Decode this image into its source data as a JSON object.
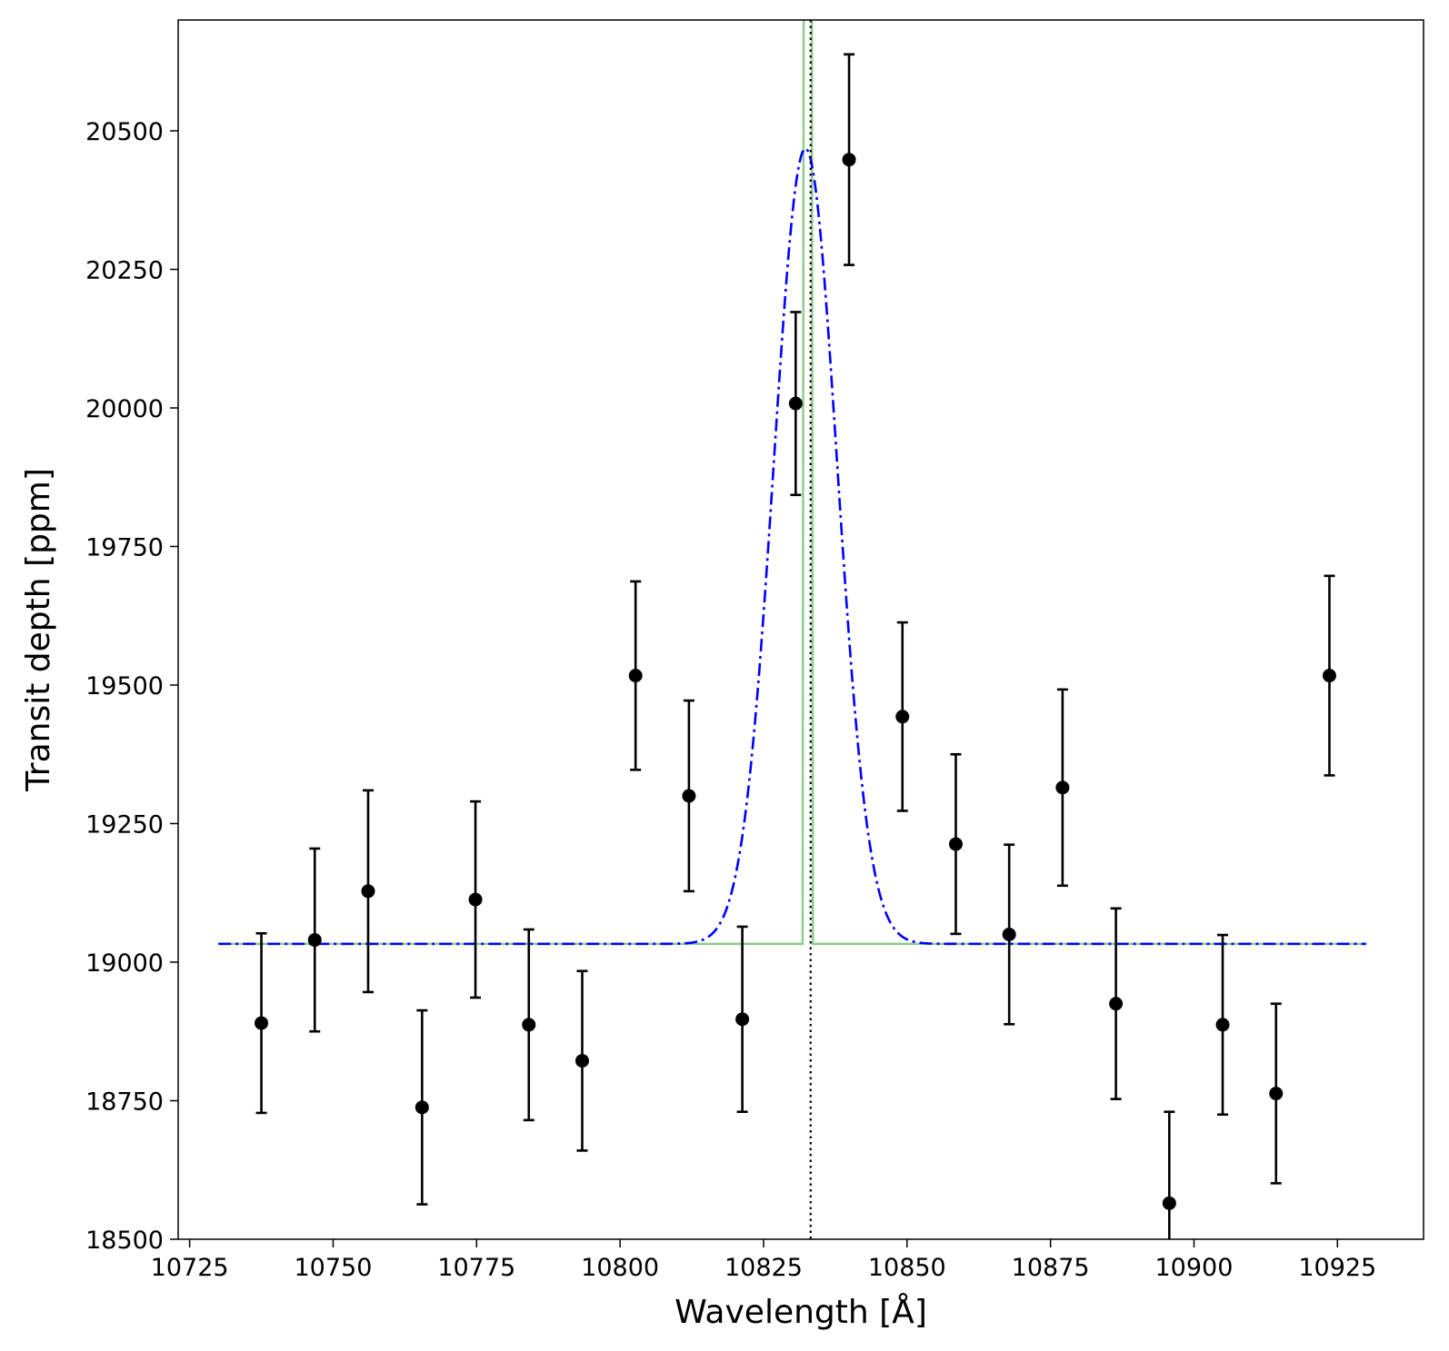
{
  "chart_data": {
    "type": "scatter",
    "xlabel": "Wavelength [Å]",
    "ylabel": "Transit depth [ppm]",
    "xlim": [
      10723,
      10940
    ],
    "ylim": [
      18500,
      20700
    ],
    "xticks": [
      10725,
      10750,
      10775,
      10800,
      10825,
      10850,
      10875,
      10900,
      10925
    ],
    "yticks": [
      18500,
      18750,
      19000,
      19250,
      19500,
      19750,
      20000,
      20250,
      20500
    ],
    "grid": false,
    "colors": {
      "points": "#000000",
      "gaussian_model": "#0000ff",
      "narrow_model": "#8fcc8f",
      "reference_line": "#000000"
    },
    "series": [
      {
        "kind": "errorbar",
        "x": [
          10737.5,
          10746.8,
          10756.1,
          10765.5,
          10774.8,
          10784.1,
          10793.4,
          10802.7,
          10812.0,
          10821.3,
          10830.6,
          10839.9,
          10849.2,
          10858.5,
          10867.8,
          10877.1,
          10886.4,
          10895.7,
          10905.0,
          10914.3,
          10923.6
        ],
        "y": [
          18890,
          19040,
          19128,
          18738,
          19113,
          18887,
          18822,
          19517,
          19300,
          18897,
          20008,
          20448,
          19443,
          19213,
          19050,
          19315,
          18925,
          18565,
          18887,
          18763,
          19517
        ],
        "yerr": [
          162,
          165,
          182,
          175,
          177,
          172,
          162,
          170,
          172,
          167,
          165,
          190,
          170,
          162,
          162,
          177,
          172,
          165,
          162,
          162,
          180
        ]
      },
      {
        "kind": "gaussian",
        "baseline": 19033,
        "amplitude": 1435,
        "center": 10832.3,
        "sigma": 5.5,
        "x_range": [
          10730,
          10930
        ]
      },
      {
        "kind": "narrow-line",
        "baseline": 19033,
        "center": 10832.7,
        "half_width": 0.9,
        "x_range": [
          10730,
          10930
        ]
      }
    ],
    "reference_line_x": 10833.2
  }
}
